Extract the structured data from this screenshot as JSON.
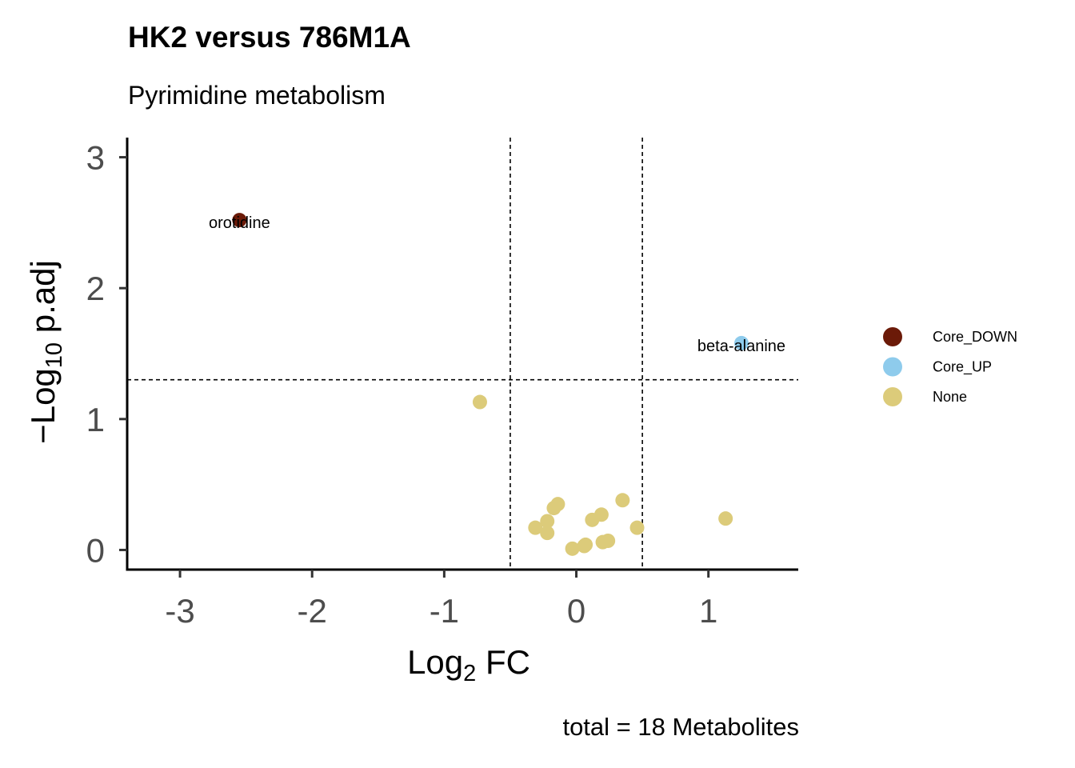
{
  "chart_data": {
    "type": "scatter",
    "title": "HK2 versus 786M1A",
    "subtitle": "Pyrimidine metabolism",
    "caption": "total = 18 Metabolites",
    "xlabel": {
      "base": "Log",
      "sub": "2",
      "rest": " FC"
    },
    "ylabel": {
      "prefix": "−Log",
      "sub": "10",
      "rest": " p.adj"
    },
    "xlim": [
      -3.4,
      1.68
    ],
    "ylim": [
      -0.15,
      3.15
    ],
    "x_ticks": [
      -3,
      -2,
      -1,
      0,
      1
    ],
    "x_tick_labels": [
      "-3",
      "-2",
      "-1",
      "0",
      "1"
    ],
    "y_ticks": [
      0,
      1,
      2,
      3
    ],
    "y_tick_labels": [
      "0",
      "1",
      "2",
      "3"
    ],
    "threshold_lines": {
      "x": [
        -0.5,
        0.5
      ],
      "y": [
        1.3
      ]
    },
    "grid": false,
    "legend_position": "right",
    "groups": [
      {
        "name": "Core_DOWN",
        "color": "#6B1A08"
      },
      {
        "name": "Core_UP",
        "color": "#8ECBEC"
      },
      {
        "name": "None",
        "color": "#DCCB7A"
      }
    ],
    "points": [
      {
        "x": -2.55,
        "y": 2.52,
        "group": "Core_DOWN",
        "label": "orotidine"
      },
      {
        "x": 1.25,
        "y": 1.58,
        "group": "Core_UP",
        "label": "beta-alanine"
      },
      {
        "x": -0.73,
        "y": 1.13,
        "group": "None"
      },
      {
        "x": 1.13,
        "y": 0.24,
        "group": "None"
      },
      {
        "x": 0.35,
        "y": 0.38,
        "group": "None"
      },
      {
        "x": 0.46,
        "y": 0.17,
        "group": "None"
      },
      {
        "x": -0.14,
        "y": 0.35,
        "group": "None"
      },
      {
        "x": -0.17,
        "y": 0.32,
        "group": "None"
      },
      {
        "x": -0.22,
        "y": 0.22,
        "group": "None"
      },
      {
        "x": -0.31,
        "y": 0.17,
        "group": "None"
      },
      {
        "x": -0.22,
        "y": 0.13,
        "group": "None"
      },
      {
        "x": 0.19,
        "y": 0.27,
        "group": "None"
      },
      {
        "x": 0.12,
        "y": 0.23,
        "group": "None"
      },
      {
        "x": 0.24,
        "y": 0.07,
        "group": "None"
      },
      {
        "x": 0.2,
        "y": 0.06,
        "group": "None"
      },
      {
        "x": 0.07,
        "y": 0.04,
        "group": "None"
      },
      {
        "x": 0.06,
        "y": 0.03,
        "group": "None"
      },
      {
        "x": -0.03,
        "y": 0.01,
        "group": "None"
      }
    ]
  }
}
